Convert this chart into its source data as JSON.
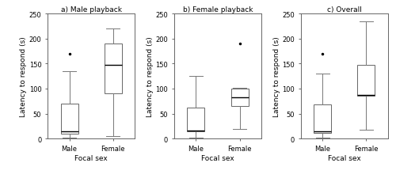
{
  "panels": [
    {
      "title": "a) Male playback",
      "male": {
        "q1": 10,
        "median": 15,
        "q3": 70,
        "whislo": 2,
        "whishi": 135,
        "fliers": [
          170
        ]
      },
      "female": {
        "q1": 90,
        "median": 148,
        "q3": 190,
        "whislo": 5,
        "whishi": 220,
        "fliers": []
      }
    },
    {
      "title": "b) Female playback",
      "male": {
        "q1": 15,
        "median": 17,
        "q3": 62,
        "whislo": 2,
        "whishi": 125,
        "fliers": []
      },
      "female": {
        "q1": 65,
        "median": 83,
        "q3": 100,
        "whislo": 20,
        "whishi": 102,
        "fliers": [
          190
        ]
      }
    },
    {
      "title": "c) Overall",
      "male": {
        "q1": 12,
        "median": 15,
        "q3": 68,
        "whislo": 2,
        "whishi": 130,
        "fliers": [
          170
        ]
      },
      "female": {
        "q1": 85,
        "median": 88,
        "q3": 148,
        "whislo": 18,
        "whishi": 235,
        "fliers": []
      }
    }
  ],
  "ylabel": "Latency to respond (s)",
  "xlabel": "Focal sex",
  "ylim": [
    0,
    250
  ],
  "yticks": [
    0,
    50,
    100,
    150,
    200,
    250
  ],
  "xtick_labels": [
    "Male",
    "Female"
  ],
  "box_width": 0.4,
  "box_color": "white",
  "median_color": "black",
  "whisker_color": "#777777",
  "flier_color": "black",
  "flier_marker": ".",
  "flier_size": 3,
  "title_fontsize": 6.5,
  "label_fontsize": 6.5,
  "tick_fontsize": 6.0
}
